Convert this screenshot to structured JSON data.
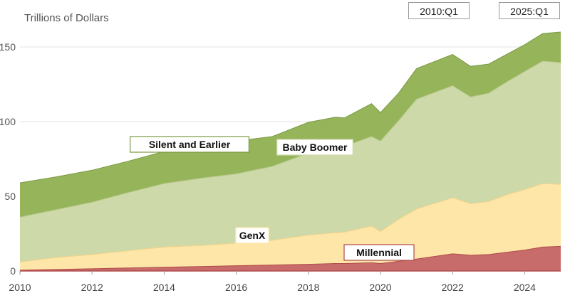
{
  "range_selector": {
    "start": "2010:Q1",
    "end": "2025:Q1"
  },
  "chart_data": {
    "type": "area",
    "stacked": true,
    "ylabel": "Trillions of Dollars",
    "ylim": [
      0,
      170
    ],
    "xlim": [
      2010.0,
      2025.0
    ],
    "yticks": [
      0,
      50,
      100,
      150
    ],
    "xticks": [
      2010,
      2012,
      2014,
      2016,
      2018,
      2020,
      2022,
      2024
    ],
    "grid": true,
    "x": [
      2010.0,
      2011.0,
      2012.0,
      2013.0,
      2014.0,
      2015.0,
      2016.0,
      2017.0,
      2018.0,
      2018.75,
      2019.0,
      2019.75,
      2020.0,
      2020.5,
      2021.0,
      2022.0,
      2022.5,
      2023.0,
      2023.5,
      2024.0,
      2024.5,
      2025.0
    ],
    "series": [
      {
        "name": "Millennial",
        "color": "#c86b6b",
        "values": [
          0.5,
          1.0,
          1.5,
          2.0,
          2.5,
          3.0,
          3.5,
          4.0,
          4.5,
          5.0,
          5.0,
          5.5,
          5.0,
          6.5,
          8.0,
          11.5,
          10.5,
          11.0,
          12.5,
          14.0,
          16.0,
          16.5
        ]
      },
      {
        "name": "GenX",
        "color": "#fde6a8",
        "values": [
          5.5,
          8.0,
          9.5,
          11.5,
          13.5,
          14.0,
          15.0,
          16.5,
          19.5,
          20.5,
          21.0,
          24.5,
          21.5,
          28.0,
          33.5,
          37.5,
          34.5,
          35.5,
          38.5,
          40.5,
          42.5,
          41.5
        ]
      },
      {
        "name": "Baby Boomer",
        "color": "#cdd9a9",
        "values": [
          30.0,
          32.0,
          35.0,
          39.0,
          42.5,
          45.0,
          46.5,
          49.5,
          55.0,
          56.0,
          57.5,
          60.0,
          60.5,
          66.0,
          73.5,
          75.0,
          71.5,
          72.5,
          75.5,
          79.0,
          82.0,
          81.5
        ]
      },
      {
        "name": "Silent and Earlier",
        "color": "#96b45a",
        "values": [
          23.0,
          22.0,
          21.5,
          21.0,
          21.5,
          22.0,
          22.0,
          20.0,
          20.5,
          21.5,
          19.0,
          22.0,
          19.0,
          18.5,
          20.5,
          21.0,
          20.5,
          19.5,
          18.5,
          18.0,
          18.5,
          20.5
        ]
      }
    ],
    "annotations": [
      {
        "text": "Silent and Earlier",
        "series": "Silent and Earlier"
      },
      {
        "text": "Baby Boomer",
        "series": "Baby Boomer"
      },
      {
        "text": "GenX",
        "series": "GenX"
      },
      {
        "text": "Millennial",
        "series": "Millennial"
      }
    ]
  }
}
